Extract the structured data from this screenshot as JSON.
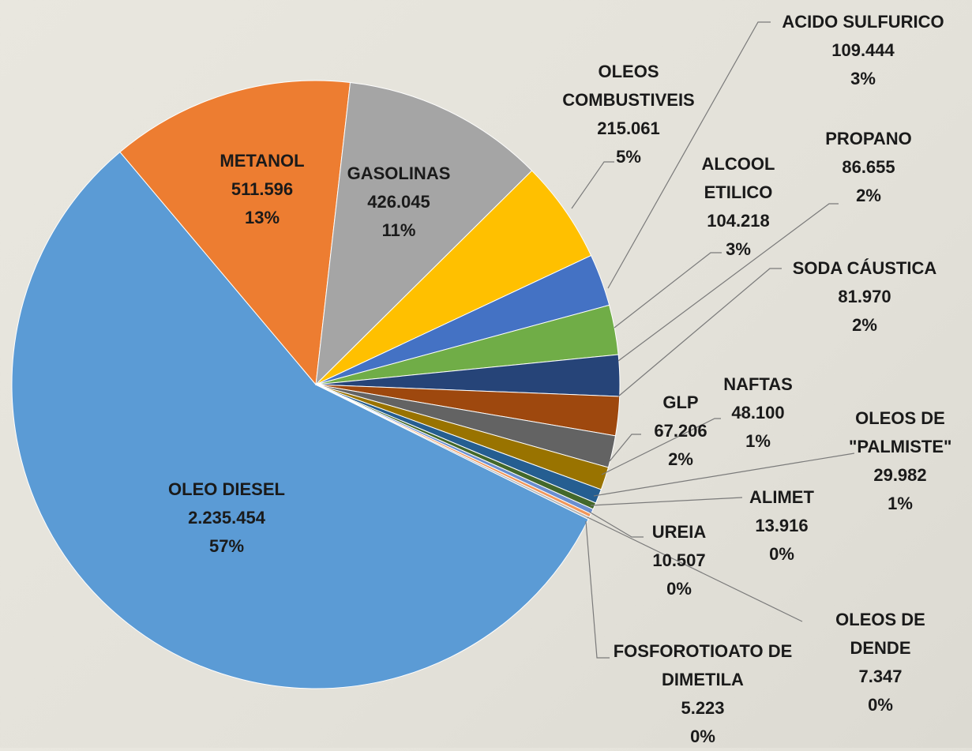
{
  "chart_data": {
    "type": "pie",
    "categories": [
      "OLEO DIESEL",
      "METANOL",
      "GASOLINAS",
      "OLEOS COMBUSTIVEIS",
      "ACIDO SULFURICO",
      "ALCOOL ETILICO",
      "PROPANO",
      "SODA CÁUSTICA",
      "GLP",
      "NAFTAS",
      "OLEOS DE \"PALMISTE\"",
      "ALIMET",
      "UREIA",
      "OLEOS DE DENDE",
      "FOSFOROTIOATO DE DIMETILA"
    ],
    "values": [
      2235454,
      511596,
      426045,
      215061,
      109444,
      104218,
      86655,
      81970,
      67206,
      48100,
      29982,
      13916,
      10507,
      7347,
      5223
    ],
    "value_labels": [
      "2.235.454",
      "511.596",
      "426.045",
      "215.061",
      "109.444",
      "104.218",
      "86.655",
      "81.970",
      "67.206",
      "48.100",
      "29.982",
      "13.916",
      "10.507",
      "7.347",
      "5.223"
    ],
    "percents": [
      57,
      13,
      11,
      5,
      3,
      3,
      2,
      2,
      2,
      1,
      1,
      0,
      0,
      0,
      0
    ],
    "percent_labels": [
      "57%",
      "13%",
      "11%",
      "5%",
      "3%",
      "3%",
      "2%",
      "2%",
      "2%",
      "1%",
      "1%",
      "0%",
      "0%",
      "0%",
      "0%"
    ],
    "colors": [
      "#5b9bd5",
      "#ed7d31",
      "#a5a5a5",
      "#ffc000",
      "#4472c4",
      "#70ad47",
      "#264478",
      "#9e480e",
      "#636363",
      "#997300",
      "#255e91",
      "#43682b",
      "#698ed0",
      "#f1975a",
      "#b7b7b7"
    ]
  }
}
